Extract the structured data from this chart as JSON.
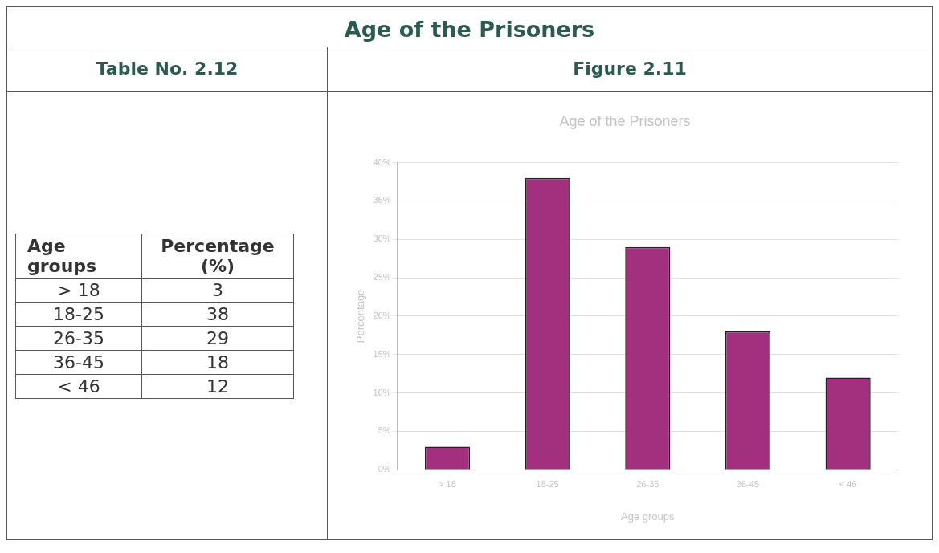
{
  "chart_data": [
    {
      "type": "other",
      "title": "Table No. 2.12",
      "annotations": [
        "Age of the Prisoners",
        "Age groups",
        "Percentage (%)"
      ],
      "categories": [
        "> 18",
        "18-25",
        "26-35",
        "36-45",
        "< 46"
      ],
      "values": [
        3,
        38,
        29,
        18,
        12
      ],
      "data_labels": true
    },
    {
      "type": "bar",
      "title": "Age of the Prisoners",
      "xlabel": "Age groups",
      "ylabel": "Percentage",
      "annotations": [
        "Figure 2.11"
      ],
      "categories": [
        "> 18",
        "18-25",
        "26-35",
        "36-45",
        "< 46"
      ],
      "values": [
        3,
        38,
        29,
        18,
        12
      ],
      "color": "#a3307f",
      "ylim": [
        0,
        40
      ],
      "yticks": [
        {
          "value": 0,
          "label": "0%"
        },
        {
          "value": 5,
          "label": "5%"
        },
        {
          "value": 10,
          "label": "10%"
        },
        {
          "value": 15,
          "label": "15%"
        },
        {
          "value": 20,
          "label": "20%"
        },
        {
          "value": 25,
          "label": "25%"
        },
        {
          "value": 30,
          "label": "30%"
        },
        {
          "value": 35,
          "label": "35%"
        },
        {
          "value": 40,
          "label": "40%"
        }
      ],
      "grid": "y",
      "legend": false
    }
  ]
}
